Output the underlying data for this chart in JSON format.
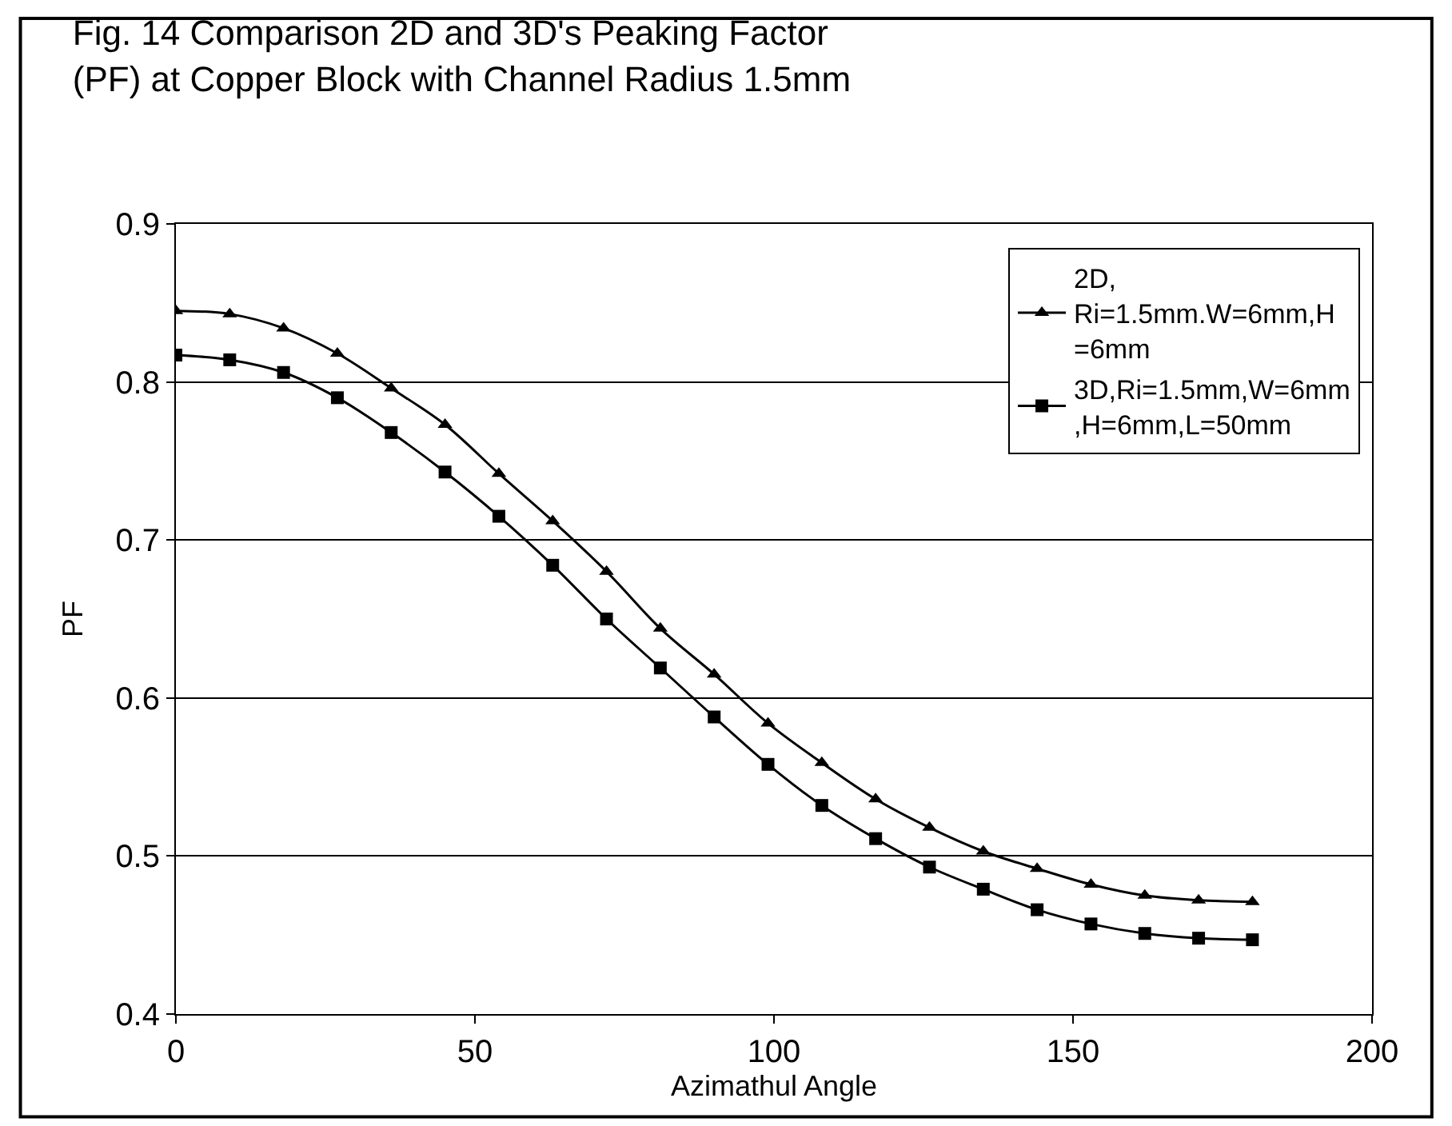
{
  "chart_data": {
    "type": "line",
    "title": "Fig. 14 Comparison 2D and 3D's Peaking Factor\n(PF) at Copper Block with Channel Radius 1.5mm",
    "xlabel": "Azimathul Angle",
    "ylabel": "PF",
    "x": [
      0,
      9,
      18,
      27,
      36,
      45,
      54,
      63,
      72,
      81,
      90,
      99,
      108,
      117,
      126,
      135,
      144,
      153,
      162,
      171,
      180
    ],
    "series": [
      {
        "name": "2D,\nRi=1.5mm.W=6mm,H\n=6mm",
        "color": "#000000",
        "marker": "triangle",
        "values": [
          0.845,
          0.843,
          0.834,
          0.818,
          0.796,
          0.773,
          0.742,
          0.712,
          0.68,
          0.644,
          0.615,
          0.584,
          0.559,
          0.536,
          0.518,
          0.503,
          0.492,
          0.482,
          0.475,
          0.472,
          0.471
        ]
      },
      {
        "name": "3D,Ri=1.5mm,W=6mm\n,H=6mm,L=50mm",
        "color": "#000000",
        "marker": "square",
        "values": [
          0.817,
          0.814,
          0.806,
          0.79,
          0.768,
          0.743,
          0.715,
          0.684,
          0.65,
          0.619,
          0.588,
          0.558,
          0.532,
          0.511,
          0.493,
          0.479,
          0.466,
          0.457,
          0.451,
          0.448,
          0.447
        ]
      }
    ],
    "xlim": [
      0,
      200
    ],
    "xticks": [
      0,
      50,
      100,
      150,
      200
    ],
    "ylim": [
      0.4,
      0.9
    ],
    "yticks": [
      0.4,
      0.5,
      0.6,
      0.7,
      0.8,
      0.9
    ],
    "grid": "y",
    "legend": "top right",
    "line_style": "solid"
  }
}
